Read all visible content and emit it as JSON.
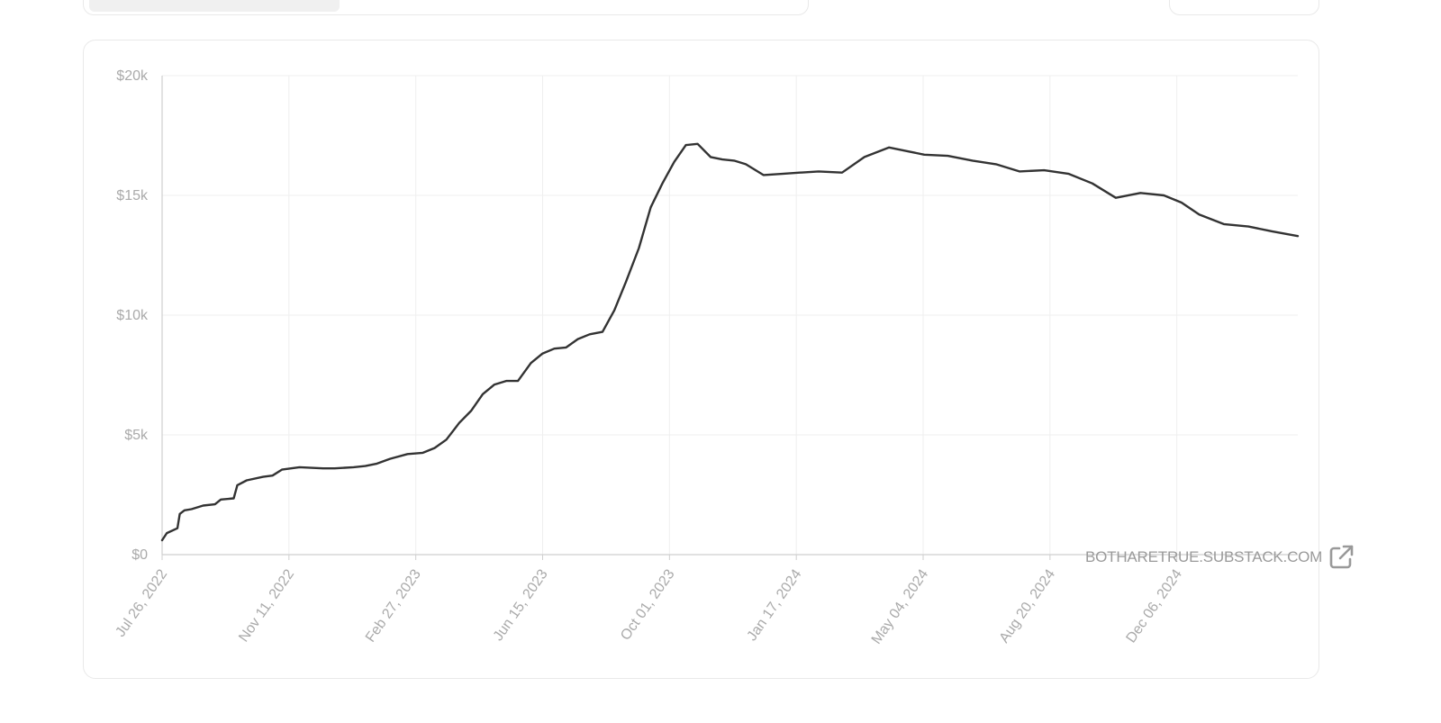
{
  "source_link": {
    "label": "BOTHARETRUE.SUBSTACK.COM",
    "icon": "external-link-icon"
  },
  "colors": {
    "line": "#333333",
    "grid": "#efefef",
    "axis": "#cfcfcf",
    "tick_label": "#aaaaaa"
  },
  "chart_data": {
    "type": "line",
    "title": "",
    "xlabel": "",
    "ylabel": "",
    "ylim": [
      0,
      20000
    ],
    "xlim": [
      "2022-07-26",
      "2025-03-19"
    ],
    "y_ticks": [
      0,
      5000,
      10000,
      15000,
      20000
    ],
    "y_tick_labels": [
      "$0",
      "$5k",
      "$10k",
      "$15k",
      "$20k"
    ],
    "x_ticks": [
      "2022-07-26",
      "2022-11-11",
      "2023-02-27",
      "2023-06-15",
      "2023-10-01",
      "2024-01-17",
      "2024-05-04",
      "2024-08-20",
      "2024-12-06"
    ],
    "x_tick_labels": [
      "Jul 26, 2022",
      "Nov 11, 2022",
      "Feb 27, 2023",
      "Jun 15, 2023",
      "Oct 01, 2023",
      "Jan 17, 2024",
      "May 04, 2024",
      "Aug 20, 2024",
      "Dec 06, 2024"
    ],
    "grid": true,
    "series": [
      {
        "x": [
          "2022-07-26",
          "2022-07-30",
          "2022-08-08",
          "2022-08-10",
          "2022-08-14",
          "2022-08-20",
          "2022-08-30",
          "2022-09-09",
          "2022-09-14",
          "2022-09-25",
          "2022-09-28",
          "2022-10-06",
          "2022-10-20",
          "2022-10-28",
          "2022-11-05",
          "2022-11-20",
          "2022-12-10",
          "2022-12-20",
          "2023-01-05",
          "2023-01-15",
          "2023-01-25",
          "2023-02-05",
          "2023-02-20",
          "2023-03-05",
          "2023-03-15",
          "2023-03-25",
          "2023-04-05",
          "2023-04-15",
          "2023-04-25",
          "2023-05-05",
          "2023-05-15",
          "2023-05-25",
          "2023-06-05",
          "2023-06-15",
          "2023-06-25",
          "2023-07-05",
          "2023-07-15",
          "2023-07-25",
          "2023-08-05",
          "2023-08-15",
          "2023-08-25",
          "2023-09-05",
          "2023-09-15",
          "2023-09-25",
          "2023-10-05",
          "2023-10-15",
          "2023-10-25",
          "2023-11-05",
          "2023-11-15",
          "2023-11-25",
          "2023-12-05",
          "2023-12-20",
          "2024-01-05",
          "2024-01-20",
          "2024-02-05",
          "2024-02-25",
          "2024-03-15",
          "2024-04-05",
          "2024-04-20",
          "2024-05-05",
          "2024-05-25",
          "2024-06-15",
          "2024-07-05",
          "2024-07-25",
          "2024-08-15",
          "2024-09-05",
          "2024-09-25",
          "2024-10-15",
          "2024-11-05",
          "2024-11-25",
          "2024-12-10",
          "2024-12-25",
          "2025-01-15",
          "2025-02-05",
          "2025-02-25",
          "2025-03-19"
        ],
        "values": [
          600,
          900,
          1100,
          1700,
          1850,
          1900,
          2050,
          2100,
          2300,
          2350,
          2900,
          3100,
          3250,
          3300,
          3550,
          3650,
          3600,
          3600,
          3650,
          3700,
          3800,
          4000,
          4200,
          4250,
          4450,
          4800,
          5500,
          6000,
          6700,
          7100,
          7250,
          7250,
          8000,
          8400,
          8600,
          8650,
          9000,
          9200,
          9300,
          10200,
          11400,
          12800,
          14500,
          15500,
          16400,
          17100,
          17150,
          16600,
          16500,
          16450,
          16300,
          15850,
          15900,
          15950,
          16000,
          15950,
          16600,
          17000,
          16850,
          16700,
          16650,
          16450,
          16300,
          16000,
          16050,
          15900,
          15500,
          14900,
          15100,
          15000,
          14700,
          14200,
          13800,
          13700,
          13500,
          13300
        ]
      }
    ]
  }
}
